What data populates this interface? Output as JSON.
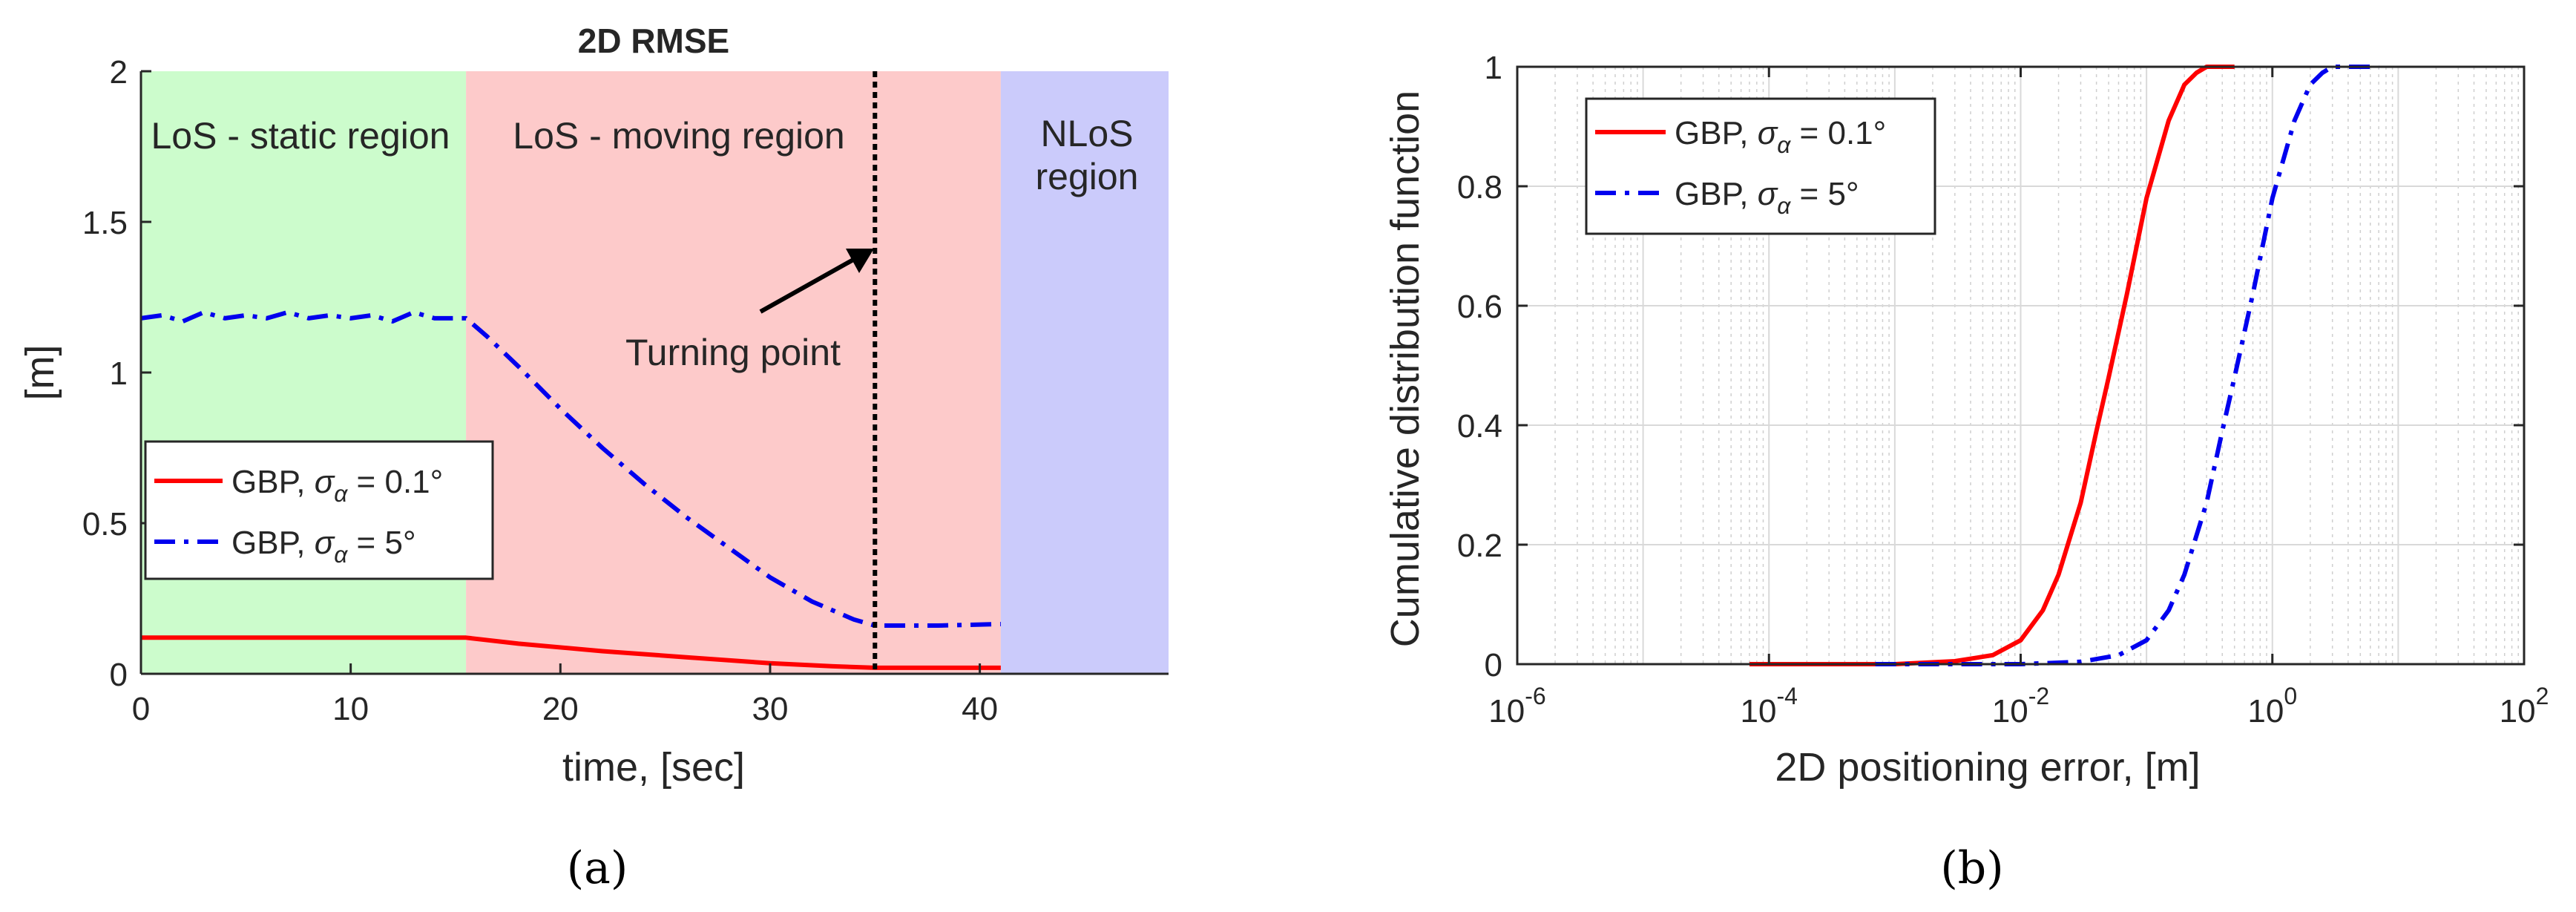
{
  "chart_data": [
    {
      "type": "line",
      "panel_label": "(a)",
      "title": "2D RMSE",
      "xlabel": "time, [sec]",
      "ylabel": "[m]",
      "xlim": [
        0,
        49
      ],
      "ylim": [
        0,
        2
      ],
      "xticks": [
        "0",
        "10",
        "20",
        "30",
        "40"
      ],
      "yticks": [
        "0",
        "0.5",
        "1",
        "1.5",
        "2"
      ],
      "grid": false,
      "regions": [
        {
          "label": "LoS - static region",
          "x_start": 0,
          "x_end": 15.5,
          "color": "#ccfccc"
        },
        {
          "label": "LoS - moving region",
          "x_start": 15.5,
          "x_end": 41,
          "color": "#fdcaca"
        },
        {
          "label_lines": [
            "NLoS",
            "region"
          ],
          "x_start": 41,
          "x_end": 49,
          "color": "#cbcbfb"
        }
      ],
      "turning_point": {
        "label": "Turning point",
        "x": 35
      },
      "legend": {
        "location": "middle-left",
        "entries": [
          {
            "prefix": "GBP, ",
            "sym": "σ",
            "sub": "α",
            "suffix": " = 0.1°"
          },
          {
            "prefix": "GBP, ",
            "sym": "σ",
            "sub": "α",
            "suffix": " = 5°"
          }
        ]
      },
      "series": [
        {
          "name": "GBP, σα = 0.1°",
          "color": "#ff0000",
          "style": "solid",
          "x": [
            0,
            5,
            10,
            15.5,
            18,
            22,
            26,
            30,
            33,
            35,
            38,
            41
          ],
          "y": [
            0.12,
            0.12,
            0.12,
            0.12,
            0.1,
            0.075,
            0.055,
            0.035,
            0.025,
            0.02,
            0.02,
            0.02
          ]
        },
        {
          "name": "GBP, σα = 5°",
          "color": "#0000ee",
          "style": "dashdot",
          "x": [
            0,
            1,
            2,
            3,
            4,
            5,
            6,
            7,
            8,
            9,
            10,
            11,
            12,
            13,
            14,
            15,
            15.5,
            16.5,
            18,
            20,
            22,
            24,
            26,
            28,
            30,
            32,
            34,
            35,
            36,
            38,
            41
          ],
          "y": [
            1.18,
            1.19,
            1.17,
            1.2,
            1.18,
            1.19,
            1.18,
            1.2,
            1.18,
            1.19,
            1.18,
            1.19,
            1.17,
            1.2,
            1.18,
            1.18,
            1.18,
            1.12,
            1.02,
            0.88,
            0.75,
            0.63,
            0.52,
            0.42,
            0.32,
            0.24,
            0.18,
            0.16,
            0.16,
            0.16,
            0.165
          ]
        }
      ]
    },
    {
      "type": "line",
      "panel_label": "(b)",
      "title": "",
      "xlabel": "2D positioning error, [m]",
      "ylabel": "Cumulative distribution function",
      "xscale": "log",
      "xlim": [
        1e-06,
        100
      ],
      "ylim": [
        0,
        1
      ],
      "xticks": [
        {
          "base": "10",
          "exp": "-6"
        },
        {
          "base": "10",
          "exp": "-4"
        },
        {
          "base": "10",
          "exp": "-2"
        },
        {
          "base": "10",
          "exp": "0"
        },
        {
          "base": "10",
          "exp": "2"
        }
      ],
      "yticks": [
        "0",
        "0.2",
        "0.4",
        "0.6",
        "0.8",
        "1"
      ],
      "grid": true,
      "legend": {
        "location": "top-left",
        "entries": [
          {
            "prefix": "GBP, ",
            "sym": "σ",
            "sub": "α",
            "suffix": " = 0.1°"
          },
          {
            "prefix": "GBP, ",
            "sym": "σ",
            "sub": "α",
            "suffix": " = 5°"
          }
        ]
      },
      "series": [
        {
          "name": "GBP, σα = 0.1°",
          "color": "#ff0000",
          "style": "solid",
          "x": [
            7e-05,
            0.001,
            0.003,
            0.006,
            0.01,
            0.015,
            0.02,
            0.03,
            0.04,
            0.05,
            0.07,
            0.1,
            0.15,
            0.2,
            0.25,
            0.3,
            0.4,
            0.5
          ],
          "y": [
            0,
            0,
            0.005,
            0.015,
            0.04,
            0.09,
            0.15,
            0.27,
            0.39,
            0.48,
            0.62,
            0.78,
            0.91,
            0.97,
            0.99,
            1.0,
            1.0,
            1.0
          ]
        },
        {
          "name": "GBP, σα = 5°",
          "color": "#0000ee",
          "style": "dashdot",
          "x": [
            0.0007,
            0.01,
            0.03,
            0.06,
            0.1,
            0.15,
            0.2,
            0.3,
            0.4,
            0.5,
            0.7,
            1.0,
            1.5,
            2.0,
            2.5,
            3.0,
            4.0,
            5.0,
            7.0
          ],
          "y": [
            0,
            0,
            0.004,
            0.015,
            0.04,
            0.09,
            0.15,
            0.27,
            0.39,
            0.48,
            0.62,
            0.78,
            0.91,
            0.97,
            0.99,
            1.0,
            1.0,
            1.0,
            1.0
          ]
        }
      ]
    }
  ]
}
